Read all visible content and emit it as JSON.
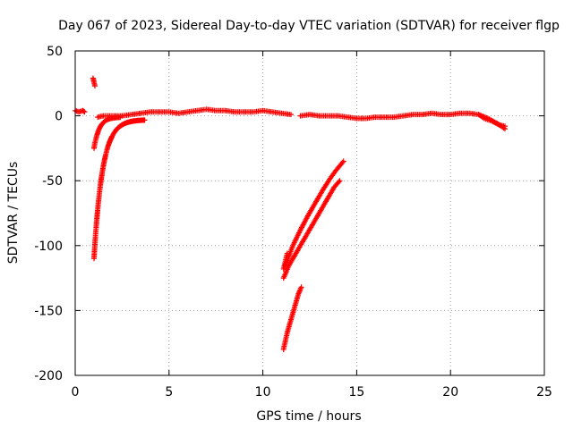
{
  "chart_data": {
    "type": "scatter",
    "title": "Day 067 of 2023, Sidereal Day-to-day VTEC variation (SDTVAR) for receiver flgp",
    "xlabel": "GPS time / hours",
    "ylabel": "SDTVAR / TECUs",
    "xlim": [
      0,
      25
    ],
    "ylim": [
      -200,
      50
    ],
    "xticks": [
      0,
      5,
      10,
      15,
      20,
      25
    ],
    "yticks": [
      -200,
      -150,
      -100,
      -50,
      0,
      50
    ],
    "grid": true,
    "marker": "+",
    "series": [
      {
        "color": "#ff0000",
        "segments": [
          {
            "kind": "line",
            "points": [
              [
                0.0,
                4
              ],
              [
                0.2,
                3
              ],
              [
                0.4,
                4
              ],
              [
                0.5,
                3
              ]
            ]
          },
          {
            "kind": "line",
            "points": [
              [
                0.95,
                29
              ],
              [
                1.0,
                26
              ],
              [
                1.05,
                23
              ]
            ]
          },
          {
            "kind": "curve",
            "t0": 1.0,
            "t1": 3.7,
            "a": -110,
            "b": -3,
            "k": 2.2,
            "n": 70
          },
          {
            "kind": "curve",
            "t0": 1.0,
            "t1": 2.4,
            "a": -25,
            "b": -1,
            "k": 3.5,
            "n": 25
          },
          {
            "kind": "line",
            "points": [
              [
                1.2,
                -1
              ],
              [
                1.5,
                0
              ],
              [
                2.0,
                0
              ],
              [
                2.5,
                0
              ],
              [
                3.0,
                1
              ],
              [
                3.5,
                2
              ],
              [
                4.0,
                3
              ],
              [
                5.0,
                3
              ],
              [
                5.5,
                2
              ],
              [
                6.0,
                3
              ],
              [
                6.5,
                4
              ],
              [
                7.0,
                5
              ],
              [
                7.5,
                4
              ],
              [
                8.0,
                4
              ],
              [
                8.5,
                3
              ],
              [
                9.0,
                3
              ],
              [
                9.5,
                3
              ],
              [
                10.0,
                4
              ],
              [
                10.5,
                3
              ],
              [
                11.0,
                2
              ],
              [
                11.5,
                1
              ]
            ]
          },
          {
            "kind": "line",
            "points": [
              [
                12.0,
                0
              ],
              [
                12.5,
                1
              ],
              [
                13.0,
                0
              ],
              [
                13.5,
                0
              ],
              [
                14.0,
                0
              ],
              [
                14.5,
                -1
              ],
              [
                15.0,
                -2
              ],
              [
                15.5,
                -2
              ],
              [
                16.0,
                -1
              ],
              [
                16.5,
                -1
              ],
              [
                17.0,
                -1
              ],
              [
                17.5,
                0
              ],
              [
                18.0,
                1
              ],
              [
                18.5,
                1
              ],
              [
                19.0,
                2
              ],
              [
                19.5,
                1
              ],
              [
                20.0,
                1
              ],
              [
                20.5,
                2
              ],
              [
                21.0,
                2
              ],
              [
                21.5,
                1
              ],
              [
                22.0,
                -2
              ],
              [
                22.5,
                -6
              ],
              [
                22.9,
                -10
              ]
            ]
          },
          {
            "kind": "line",
            "points": [
              [
                21.5,
                1
              ],
              [
                21.8,
                -2
              ],
              [
                22.2,
                -4
              ],
              [
                22.6,
                -7
              ],
              [
                22.9,
                -8
              ]
            ]
          },
          {
            "kind": "line",
            "points": [
              [
                11.1,
                -125
              ],
              [
                11.4,
                -115
              ],
              [
                11.8,
                -105
              ],
              [
                12.2,
                -95
              ],
              [
                12.6,
                -85
              ],
              [
                13.0,
                -75
              ],
              [
                13.4,
                -65
              ],
              [
                13.8,
                -55
              ],
              [
                14.1,
                -50
              ]
            ]
          },
          {
            "kind": "line",
            "points": [
              [
                11.2,
                -115
              ],
              [
                11.6,
                -100
              ],
              [
                12.0,
                -88
              ],
              [
                12.4,
                -77
              ],
              [
                12.8,
                -67
              ],
              [
                13.2,
                -57
              ],
              [
                13.6,
                -48
              ],
              [
                13.9,
                -42
              ],
              [
                14.3,
                -35
              ]
            ]
          },
          {
            "kind": "line",
            "points": [
              [
                11.1,
                -118
              ],
              [
                11.2,
                -112
              ],
              [
                11.3,
                -106
              ]
            ]
          },
          {
            "kind": "line",
            "points": [
              [
                11.1,
                -180
              ],
              [
                11.3,
                -167
              ],
              [
                11.5,
                -157
              ],
              [
                11.7,
                -147
              ],
              [
                11.9,
                -137
              ],
              [
                12.05,
                -132
              ]
            ]
          }
        ]
      }
    ]
  }
}
